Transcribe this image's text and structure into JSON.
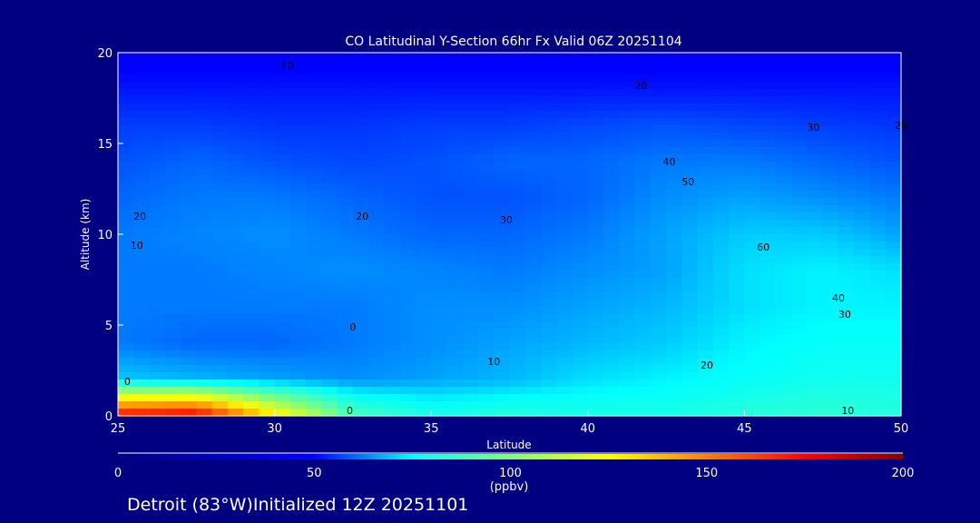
{
  "chart_data": {
    "type": "heatmap",
    "title": "CO Latitudinal Y-Section 66hr  Fx Valid 06Z 20251104",
    "xlabel": "Latitude",
    "ylabel": "Altitude (km)",
    "xlim": [
      25,
      50
    ],
    "ylim": [
      0,
      20
    ],
    "xticks": [
      "25",
      "30",
      "35",
      "40",
      "45",
      "50"
    ],
    "yticks": [
      "0",
      "5",
      "10",
      "15",
      "20"
    ],
    "x": [
      25,
      27.5,
      30,
      32.5,
      35,
      37.5,
      40,
      42.5,
      45,
      47.5,
      50
    ],
    "y": [
      20,
      18,
      16,
      14,
      12,
      10,
      8,
      6,
      4,
      2,
      0
    ],
    "z": [
      [
        48,
        48,
        48,
        48,
        48,
        48,
        48,
        48,
        48,
        48,
        48
      ],
      [
        52,
        52,
        52,
        52,
        52,
        52,
        52,
        52,
        52,
        52,
        52
      ],
      [
        56,
        56,
        55,
        55,
        56,
        56,
        57,
        58,
        57,
        56,
        55
      ],
      [
        58,
        60,
        58,
        57,
        58,
        60,
        60,
        62,
        62,
        60,
        58
      ],
      [
        60,
        62,
        62,
        60,
        58,
        58,
        60,
        64,
        66,
        64,
        62
      ],
      [
        62,
        63,
        64,
        62,
        60,
        60,
        62,
        66,
        70,
        70,
        66
      ],
      [
        62,
        62,
        63,
        64,
        63,
        62,
        64,
        66,
        72,
        74,
        72
      ],
      [
        62,
        62,
        62,
        62,
        64,
        64,
        66,
        68,
        72,
        74,
        74
      ],
      [
        62,
        60,
        60,
        62,
        64,
        66,
        68,
        70,
        74,
        76,
        76
      ],
      [
        70,
        68,
        66,
        64,
        66,
        68,
        72,
        74,
        76,
        78,
        78
      ],
      [
        175,
        180,
        130,
        90,
        80,
        82,
        80,
        80,
        82,
        84,
        82
      ]
    ],
    "contour_labels": [
      {
        "lat": 30.4,
        "alt": 19.3,
        "text": "10"
      },
      {
        "lat": 41.7,
        "alt": 18.2,
        "text": "20"
      },
      {
        "lat": 47.2,
        "alt": 15.9,
        "text": "30"
      },
      {
        "lat": 50.0,
        "alt": 16.0,
        "text": "20"
      },
      {
        "lat": 25.7,
        "alt": 11.0,
        "text": "20"
      },
      {
        "lat": 25.6,
        "alt": 9.4,
        "text": "10"
      },
      {
        "lat": 32.8,
        "alt": 11.0,
        "text": "20"
      },
      {
        "lat": 37.4,
        "alt": 10.8,
        "text": "30"
      },
      {
        "lat": 42.6,
        "alt": 14.0,
        "text": "40"
      },
      {
        "lat": 43.2,
        "alt": 12.9,
        "text": "50"
      },
      {
        "lat": 45.6,
        "alt": 9.3,
        "text": "60"
      },
      {
        "lat": 48.0,
        "alt": 6.5,
        "text": "40"
      },
      {
        "lat": 48.2,
        "alt": 5.6,
        "text": "30"
      },
      {
        "lat": 32.5,
        "alt": 4.9,
        "text": "0"
      },
      {
        "lat": 37.0,
        "alt": 3.0,
        "text": "10"
      },
      {
        "lat": 43.8,
        "alt": 2.8,
        "text": "20"
      },
      {
        "lat": 25.3,
        "alt": 1.9,
        "text": "0"
      },
      {
        "lat": 32.4,
        "alt": 0.3,
        "text": "0"
      },
      {
        "lat": 48.3,
        "alt": 0.3,
        "text": "10"
      }
    ],
    "colorbar": {
      "range": [
        0,
        200
      ],
      "ticks": [
        "0",
        "50",
        "100",
        "150",
        "200"
      ],
      "units": "(ppbv)",
      "stops": [
        "#000080",
        "#0000ff",
        "#00ffff",
        "#ffff00",
        "#ff0000",
        "#800000"
      ]
    }
  },
  "footer": "Detroit (83°W)Initialized 12Z 20251101"
}
